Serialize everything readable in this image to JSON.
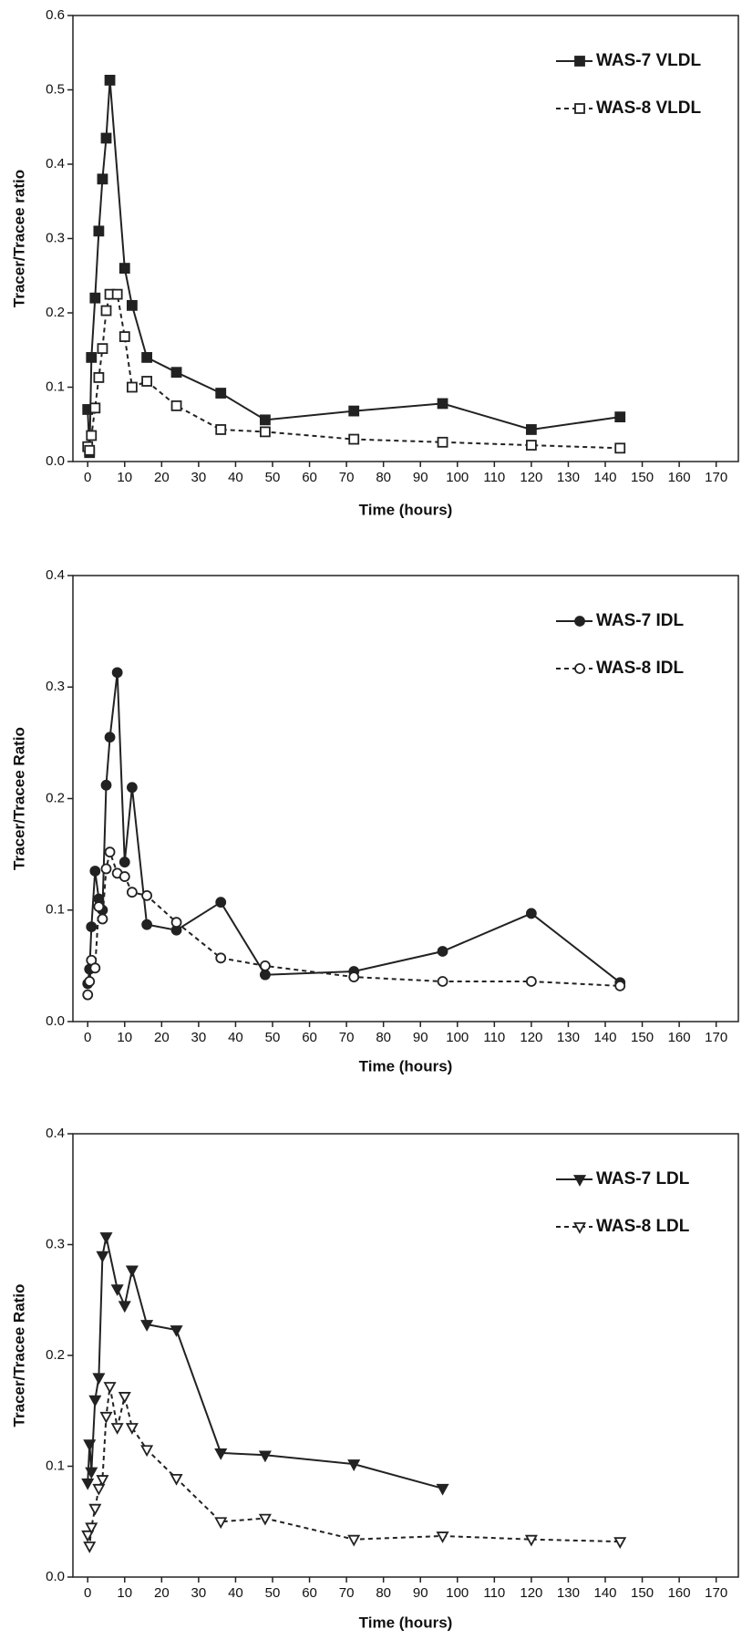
{
  "chart_data": [
    {
      "type": "line",
      "y_label": "Tracer/Tracee ratio",
      "x_label": "Time (hours)",
      "xlim": [
        -4,
        176
      ],
      "ylim": [
        0,
        0.6
      ],
      "xticks": [
        0,
        10,
        20,
        30,
        40,
        50,
        60,
        70,
        80,
        90,
        100,
        110,
        120,
        130,
        140,
        150,
        160,
        170
      ],
      "yticks": [
        {
          "value": 0,
          "label": "0.0"
        },
        0.1,
        0.2,
        0.3,
        0.4,
        0.5,
        0.6
      ],
      "legend": "upper right",
      "series": [
        {
          "name": "WAS-7 VLDL",
          "color": "#222222",
          "marker": "square",
          "filled": true,
          "dashed": false,
          "x": [
            0,
            0.5,
            1,
            2,
            3,
            4,
            5,
            6,
            10,
            12,
            16,
            24,
            36,
            48,
            72,
            96,
            120,
            144
          ],
          "values": [
            0.07,
            0.012,
            0.14,
            0.22,
            0.31,
            0.38,
            0.435,
            0.513,
            0.26,
            0.21,
            0.14,
            0.12,
            0.092,
            0.056,
            0.068,
            0.078,
            0.043,
            0.06
          ]
        },
        {
          "name": "WAS-8 VLDL",
          "color": "#222222",
          "marker": "square",
          "filled": false,
          "dashed": true,
          "x": [
            0,
            0.5,
            1,
            2,
            3,
            4,
            5,
            6,
            8,
            10,
            12,
            16,
            24,
            36,
            48,
            72,
            96,
            120,
            144
          ],
          "values": [
            0.02,
            0.015,
            0.035,
            0.072,
            0.113,
            0.152,
            0.203,
            0.225,
            0.225,
            0.168,
            0.1,
            0.108,
            0.075,
            0.043,
            0.04,
            0.03,
            0.026,
            0.022,
            0.018
          ]
        }
      ]
    },
    {
      "type": "line",
      "y_label": "Tracer/Tracee Ratio",
      "x_label": "Time (hours)",
      "xlim": [
        -4,
        176
      ],
      "ylim": [
        0,
        0.4
      ],
      "xticks": [
        0,
        10,
        20,
        30,
        40,
        50,
        60,
        70,
        80,
        90,
        100,
        110,
        120,
        130,
        140,
        150,
        160,
        170
      ],
      "yticks": [
        {
          "value": 0,
          "label": "0.0"
        },
        0.1,
        0.2,
        0.3,
        0.4
      ],
      "legend": "upper right",
      "series": [
        {
          "name": "WAS-7 IDL",
          "color": "#222222",
          "marker": "circle",
          "filled": true,
          "dashed": false,
          "x": [
            0,
            0.5,
            1,
            2,
            3,
            4,
            5,
            6,
            8,
            10,
            12,
            16,
            24,
            36,
            48,
            72,
            96,
            120,
            144
          ],
          "values": [
            0.034,
            0.047,
            0.085,
            0.135,
            0.11,
            0.1,
            0.212,
            0.255,
            0.313,
            0.143,
            0.21,
            0.087,
            0.082,
            0.107,
            0.042,
            0.045,
            0.063,
            0.097,
            0.035
          ]
        },
        {
          "name": "WAS-8 IDL",
          "color": "#222222",
          "marker": "circle",
          "filled": false,
          "dashed": true,
          "x": [
            0,
            0.5,
            1,
            2,
            3,
            4,
            5,
            6,
            8,
            10,
            12,
            16,
            24,
            36,
            48,
            72,
            96,
            120,
            144
          ],
          "values": [
            0.024,
            0.036,
            0.055,
            0.048,
            0.103,
            0.092,
            0.137,
            0.152,
            0.133,
            0.13,
            0.116,
            0.113,
            0.089,
            0.057,
            0.05,
            0.04,
            0.036,
            0.036,
            0.032
          ]
        }
      ]
    },
    {
      "type": "line",
      "y_label": "Tracer/Tracee Ratio",
      "x_label": "Time (hours)",
      "xlim": [
        -4,
        176
      ],
      "ylim": [
        0,
        0.4
      ],
      "xticks": [
        0,
        10,
        20,
        30,
        40,
        50,
        60,
        70,
        80,
        90,
        100,
        110,
        120,
        130,
        140,
        150,
        160,
        170
      ],
      "yticks": [
        {
          "value": 0,
          "label": "0.0"
        },
        0.1,
        0.2,
        0.3,
        0.4
      ],
      "legend": "upper right",
      "series": [
        {
          "name": "WAS-7 LDL",
          "color": "#222222",
          "marker": "triangle-down",
          "filled": true,
          "dashed": false,
          "x": [
            0,
            0.5,
            1,
            2,
            3,
            4,
            5,
            8,
            10,
            12,
            16,
            24,
            36,
            48,
            72,
            96
          ],
          "values": [
            0.085,
            0.12,
            0.095,
            0.16,
            0.18,
            0.29,
            0.307,
            0.26,
            0.245,
            0.277,
            0.228,
            0.223,
            0.112,
            0.11,
            0.102,
            0.08
          ]
        },
        {
          "name": "WAS-8 LDL",
          "color": "#222222",
          "marker": "triangle-down",
          "filled": false,
          "dashed": true,
          "x": [
            0,
            0.5,
            1,
            2,
            3,
            4,
            5,
            6,
            8,
            10,
            12,
            16,
            24,
            36,
            48,
            72,
            96,
            120,
            144
          ],
          "values": [
            0.038,
            0.028,
            0.045,
            0.062,
            0.08,
            0.088,
            0.145,
            0.172,
            0.135,
            0.163,
            0.135,
            0.115,
            0.089,
            0.05,
            0.053,
            0.034,
            0.037,
            0.034,
            0.032
          ]
        }
      ]
    }
  ]
}
